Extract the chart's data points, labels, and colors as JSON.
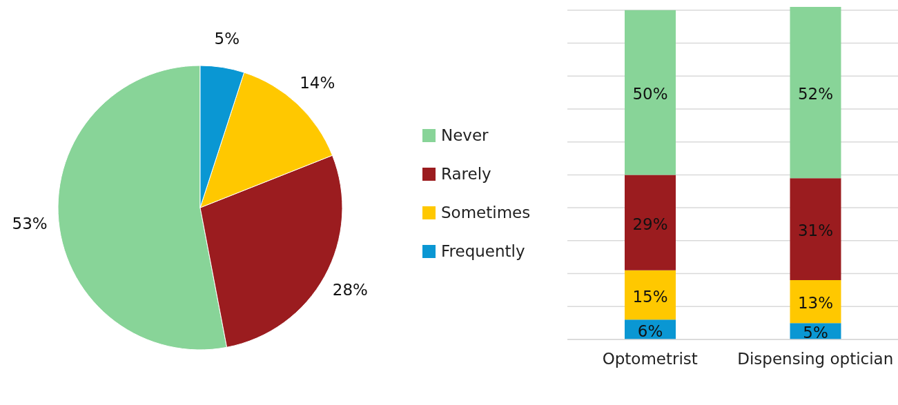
{
  "chart_data": [
    {
      "type": "pie",
      "categories": [
        "Never",
        "Rarely",
        "Sometimes",
        "Frequently"
      ],
      "values": [
        53,
        28,
        14,
        5
      ],
      "colors": [
        "#88d498",
        "#9b1c1f",
        "#ffc800",
        "#0a97d3"
      ],
      "value_labels": [
        "53%",
        "28%",
        "14%",
        "5%"
      ],
      "legend": "right"
    },
    {
      "type": "bar",
      "stacked": true,
      "categories": [
        "Optometrist",
        "Dispensing optician"
      ],
      "series": [
        {
          "color": "#0a97d3",
          "values": [
            6,
            5
          ],
          "value_labels": [
            "6%",
            "5%"
          ]
        },
        {
          "color": "#ffc800",
          "values": [
            15,
            13
          ],
          "value_labels": [
            "15%",
            "13%"
          ]
        },
        {
          "color": "#9b1c1f",
          "values": [
            29,
            31
          ],
          "value_labels": [
            "29%",
            "31%"
          ]
        },
        {
          "color": "#88d498",
          "values": [
            50,
            52
          ],
          "value_labels": [
            "50%",
            "52%"
          ]
        }
      ],
      "ylim": [
        0,
        101
      ],
      "yticks": [
        {
          "value": 0,
          "label": null
        },
        {
          "value": 10,
          "label": null
        },
        {
          "value": 20,
          "label": null
        },
        {
          "value": 30,
          "label": null
        },
        {
          "value": 40,
          "label": null
        },
        {
          "value": 50,
          "label": null
        },
        {
          "value": 60,
          "label": null
        },
        {
          "value": 70,
          "label": null
        },
        {
          "value": 80,
          "label": null
        },
        {
          "value": 90,
          "label": null
        },
        {
          "value": 100,
          "label": null
        }
      ],
      "tick_labels": "x",
      "grid": "y"
    }
  ]
}
